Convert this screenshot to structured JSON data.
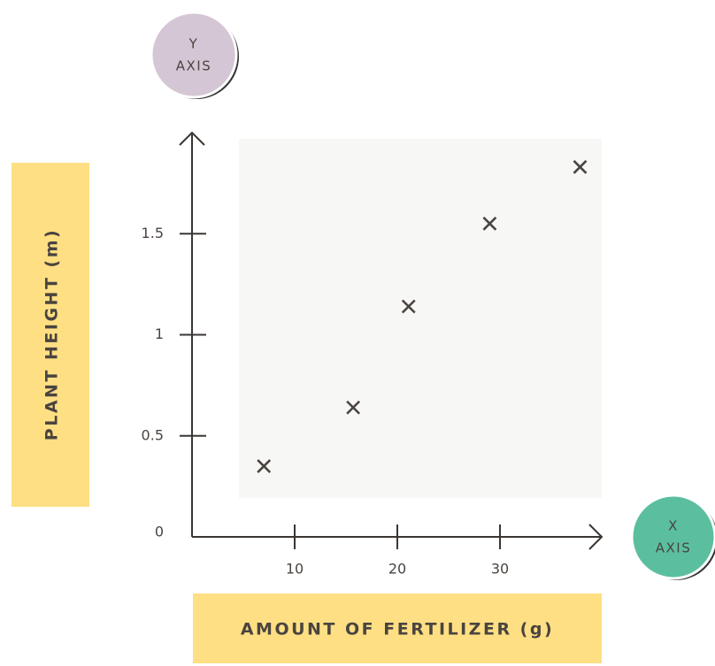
{
  "chart_data": {
    "type": "scatter",
    "y_badge": [
      "Y",
      "AXIS"
    ],
    "x_badge": [
      "X",
      "AXIS"
    ],
    "ylabel": "PLANT HEIGHT (m)",
    "xlabel": "AMOUNT OF FERTILIZER (g)",
    "x": [
      7,
      15.7,
      21.1,
      29,
      37.8
    ],
    "values": [
      0.35,
      0.64,
      1.14,
      1.55,
      1.83
    ],
    "color": "#4a4440",
    "xlim": [
      0,
      40
    ],
    "ylim": [
      0,
      2
    ],
    "xticks": [
      10,
      20,
      30
    ],
    "yticks": [
      0,
      0.5,
      1,
      1.5
    ]
  }
}
